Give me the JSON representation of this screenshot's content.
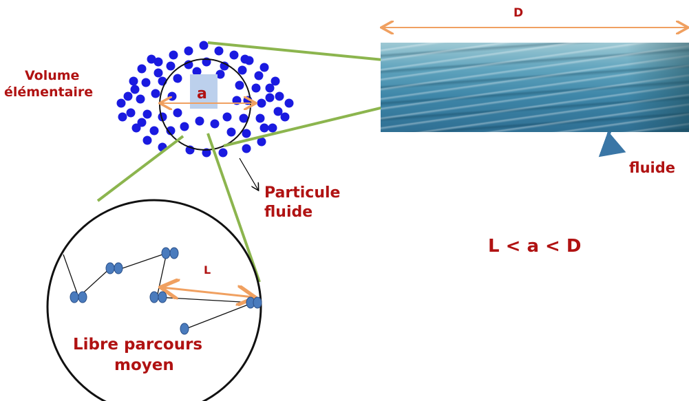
{
  "labels": {
    "D": "D",
    "a": "a",
    "L": "L",
    "volume_line1": "Volume",
    "volume_line2": "élémentaire",
    "particule_line1": "Particule",
    "particule_line2": "fluide",
    "fluide": "fluide",
    "relation": "L < a < D",
    "libre_line1": "Libre parcours",
    "libre_line2": "moyen"
  },
  "colors": {
    "text": "#b01212",
    "dimension_arrow": "#f0a060",
    "zoom_lines": "#8cb54e",
    "molecule": "#1a1ae0",
    "molecule_pair": "#4a7bbd",
    "element_square": "#bcd0ec",
    "curved_arrow": "#3a76a6"
  }
}
